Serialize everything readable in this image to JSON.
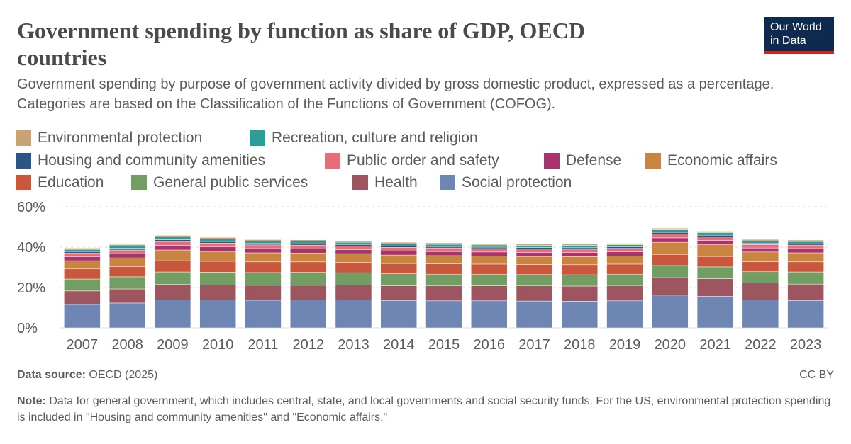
{
  "chart_data": {
    "type": "stacked_bar",
    "title": "Government spending by function as share of GDP, OECD countries",
    "subtitle": "Government spending by purpose of government activity divided by gross domestic product, expressed as a percentage. Categories are based on the Classification of the Functions of Government (COFOG).",
    "logo": "Our World in Data",
    "source_label": "Data source:",
    "source": "OECD (2025)",
    "license": "CC BY",
    "note_label": "Note:",
    "note": "Data for general government, which includes central, state, and local governments and social security funds. For the US, environmental protection spending is included in \"Housing and community amenities\" and \"Economic affairs.\"",
    "categories": [
      "2007",
      "2008",
      "2009",
      "2010",
      "2011",
      "2012",
      "2013",
      "2014",
      "2015",
      "2016",
      "2017",
      "2018",
      "2019",
      "2020",
      "2021",
      "2022",
      "2023"
    ],
    "ylim": [
      0,
      60
    ],
    "yticks": [
      {
        "value": 0,
        "label": "0%"
      },
      {
        "value": 20,
        "label": "20%"
      },
      {
        "value": 40,
        "label": "40%"
      },
      {
        "value": 60,
        "label": "60%"
      }
    ],
    "grid": true,
    "series": [
      {
        "name": "Social protection",
        "color": "#6d86b3",
        "values": [
          11.6,
          12.3,
          13.9,
          13.8,
          13.7,
          13.8,
          13.8,
          13.5,
          13.4,
          13.4,
          13.3,
          13.2,
          13.4,
          16.2,
          15.6,
          13.8,
          13.5
        ]
      },
      {
        "name": "Health",
        "color": "#9d5560",
        "values": [
          6.7,
          7.0,
          7.6,
          7.5,
          7.4,
          7.3,
          7.4,
          7.4,
          7.4,
          7.5,
          7.5,
          7.5,
          7.6,
          8.7,
          8.8,
          8.4,
          8.2
        ]
      },
      {
        "name": "General public services",
        "color": "#739e63",
        "values": [
          5.9,
          6.0,
          6.2,
          6.3,
          6.3,
          6.4,
          6.1,
          5.9,
          5.8,
          5.7,
          5.6,
          5.6,
          5.6,
          6.0,
          5.8,
          5.6,
          6.0
        ]
      },
      {
        "name": "Education",
        "color": "#c9573e",
        "values": [
          5.0,
          5.1,
          5.6,
          5.4,
          5.3,
          5.2,
          5.2,
          5.1,
          5.1,
          5.0,
          5.0,
          5.0,
          5.0,
          5.5,
          5.2,
          5.0,
          5.0
        ]
      },
      {
        "name": "Economic affairs",
        "color": "#c88440",
        "values": [
          4.1,
          4.3,
          5.3,
          4.9,
          4.5,
          4.4,
          4.3,
          4.2,
          4.1,
          4.0,
          4.0,
          4.0,
          4.1,
          6.0,
          5.8,
          4.8,
          4.5
        ]
      },
      {
        "name": "Defense",
        "color": "#a9336d",
        "values": [
          2.0,
          2.1,
          2.3,
          2.2,
          2.1,
          2.1,
          2.0,
          2.0,
          2.0,
          2.0,
          2.0,
          2.0,
          2.0,
          2.2,
          2.1,
          2.0,
          2.1
        ]
      },
      {
        "name": "Public order and safety",
        "color": "#e56e7a",
        "values": [
          1.7,
          1.8,
          1.9,
          1.9,
          1.8,
          1.8,
          1.8,
          1.8,
          1.8,
          1.7,
          1.7,
          1.7,
          1.7,
          1.9,
          1.8,
          1.7,
          1.7
        ]
      },
      {
        "name": "Housing and community amenities",
        "color": "#2d5583",
        "values": [
          0.8,
          0.8,
          0.9,
          0.8,
          0.7,
          0.7,
          0.7,
          0.7,
          0.7,
          0.7,
          0.7,
          0.7,
          0.7,
          0.8,
          0.8,
          0.7,
          0.7
        ]
      },
      {
        "name": "Recreation, culture and religion",
        "color": "#2c9c96",
        "values": [
          1.1,
          1.2,
          1.3,
          1.2,
          1.2,
          1.2,
          1.1,
          1.1,
          1.1,
          1.1,
          1.1,
          1.1,
          1.1,
          1.3,
          1.2,
          1.1,
          1.1
        ]
      },
      {
        "name": "Environmental protection",
        "color": "#c8a374",
        "values": [
          0.6,
          0.7,
          0.8,
          0.8,
          0.7,
          0.7,
          0.7,
          0.7,
          0.7,
          0.7,
          0.7,
          0.7,
          0.7,
          0.8,
          0.8,
          0.7,
          0.7
        ]
      }
    ]
  }
}
